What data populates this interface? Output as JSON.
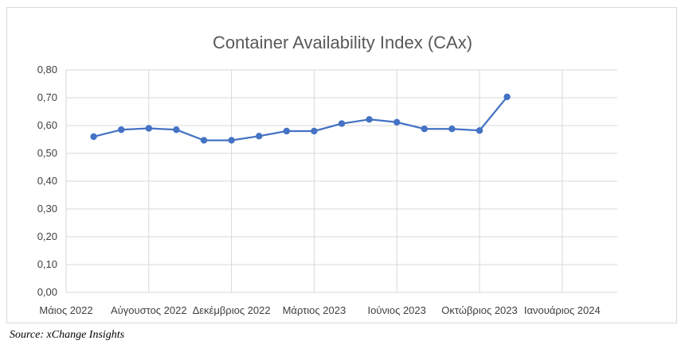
{
  "chart_data": {
    "type": "line",
    "title": "Container Availability Index (CAx)",
    "xlabel": "",
    "ylabel": "",
    "ylim": [
      0,
      0.8
    ],
    "y_ticks": [
      "0,00",
      "0,10",
      "0,20",
      "0,30",
      "0,40",
      "0,50",
      "0,60",
      "0,70",
      "0,80"
    ],
    "y_tick_values": [
      0,
      0.1,
      0.2,
      0.3,
      0.4,
      0.5,
      0.6,
      0.7,
      0.8
    ],
    "x_range": [
      0,
      20
    ],
    "x_tick_labels": [
      {
        "label": "Μάιος 2022",
        "x": 0
      },
      {
        "label": "Αύγουστος 2022",
        "x": 3
      },
      {
        "label": "Δεκέμβριος 2022",
        "x": 6
      },
      {
        "label": "Μάρτιος 2023",
        "x": 9
      },
      {
        "label": "Ιούνιος 2023",
        "x": 12
      },
      {
        "label": "Οκτώβριος 2023",
        "x": 15
      },
      {
        "label": "Ιανουάριος 2024",
        "x": 18
      }
    ],
    "grid": true,
    "series": [
      {
        "name": "CAx",
        "color": "#4472c4",
        "x": [
          1,
          2,
          3,
          4,
          5,
          6,
          7,
          8,
          9,
          10,
          11,
          12,
          13,
          14,
          15,
          16
        ],
        "values": [
          0.56,
          0.585,
          0.59,
          0.585,
          0.547,
          0.547,
          0.562,
          0.58,
          0.58,
          0.607,
          0.622,
          0.612,
          0.588,
          0.588,
          0.582,
          0.703
        ]
      }
    ]
  },
  "source": "Source: xChange Insights",
  "colors": {
    "grid": "#d9d9d9",
    "line": "#4472c4",
    "text": "#404040"
  }
}
